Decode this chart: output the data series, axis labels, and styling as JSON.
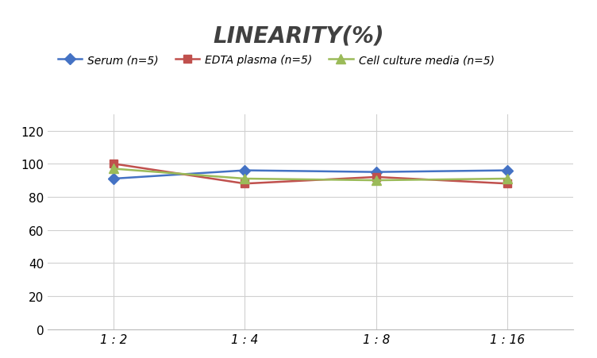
{
  "title": "LINEARITY(%)",
  "x_labels": [
    "1 : 2",
    "1 : 4",
    "1 : 8",
    "1 : 16"
  ],
  "x_positions": [
    0,
    1,
    2,
    3
  ],
  "series": [
    {
      "label": "Serum (n=5)",
      "values": [
        91,
        96,
        95,
        96
      ],
      "color": "#4472C4",
      "marker": "D",
      "marker_size": 7,
      "linewidth": 1.8
    },
    {
      "label": "EDTA plasma (n=5)",
      "values": [
        100,
        88,
        92,
        88
      ],
      "color": "#C0504D",
      "marker": "s",
      "marker_size": 7,
      "linewidth": 1.8
    },
    {
      "label": "Cell culture media (n=5)",
      "values": [
        97,
        91,
        90,
        91
      ],
      "color": "#9BBB59",
      "marker": "^",
      "marker_size": 8,
      "linewidth": 1.8
    }
  ],
  "ylim": [
    0,
    130
  ],
  "yticks": [
    0,
    20,
    40,
    60,
    80,
    100,
    120
  ],
  "background_color": "#ffffff",
  "title_fontsize": 20,
  "title_fontstyle": "italic",
  "title_fontweight": "bold",
  "legend_fontsize": 10,
  "tick_fontsize": 11,
  "grid_color": "#d0d0d0",
  "grid_linewidth": 0.8
}
